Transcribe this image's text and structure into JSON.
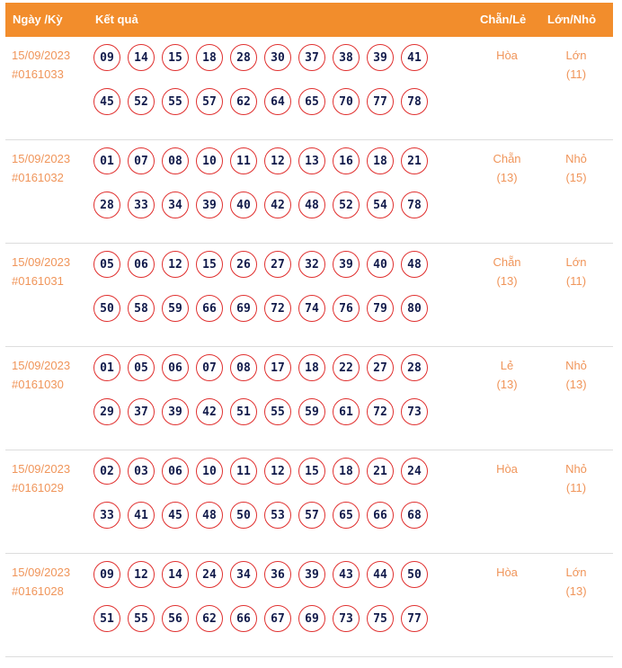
{
  "header": {
    "date": "Ngày /Kỳ",
    "result": "Kết quả",
    "even_odd": "Chẵn/Lẻ",
    "big_small": "Lớn/Nhỏ"
  },
  "colors": {
    "header_bg": "#f28d2c",
    "ball_border": "#e0302f",
    "text_accent": "#f0955a"
  },
  "rows": [
    {
      "date": "15/09/2023",
      "id": "#0161033",
      "numbers": [
        "09",
        "14",
        "15",
        "18",
        "28",
        "30",
        "37",
        "38",
        "39",
        "41",
        "45",
        "52",
        "55",
        "57",
        "62",
        "64",
        "65",
        "70",
        "77",
        "78"
      ],
      "even_odd": "Hòa",
      "even_odd_count": "",
      "big_small": "Lớn",
      "big_small_count": "(11)"
    },
    {
      "date": "15/09/2023",
      "id": "#0161032",
      "numbers": [
        "01",
        "07",
        "08",
        "10",
        "11",
        "12",
        "13",
        "16",
        "18",
        "21",
        "28",
        "33",
        "34",
        "39",
        "40",
        "42",
        "48",
        "52",
        "54",
        "78"
      ],
      "even_odd": "Chẵn",
      "even_odd_count": "(13)",
      "big_small": "Nhỏ",
      "big_small_count": "(15)"
    },
    {
      "date": "15/09/2023",
      "id": "#0161031",
      "numbers": [
        "05",
        "06",
        "12",
        "15",
        "26",
        "27",
        "32",
        "39",
        "40",
        "48",
        "50",
        "58",
        "59",
        "66",
        "69",
        "72",
        "74",
        "76",
        "79",
        "80"
      ],
      "even_odd": "Chẵn",
      "even_odd_count": "(13)",
      "big_small": "Lớn",
      "big_small_count": "(11)"
    },
    {
      "date": "15/09/2023",
      "id": "#0161030",
      "numbers": [
        "01",
        "05",
        "06",
        "07",
        "08",
        "17",
        "18",
        "22",
        "27",
        "28",
        "29",
        "37",
        "39",
        "42",
        "51",
        "55",
        "59",
        "61",
        "72",
        "73"
      ],
      "even_odd": "Lẻ",
      "even_odd_count": "(13)",
      "big_small": "Nhỏ",
      "big_small_count": "(13)"
    },
    {
      "date": "15/09/2023",
      "id": "#0161029",
      "numbers": [
        "02",
        "03",
        "06",
        "10",
        "11",
        "12",
        "15",
        "18",
        "21",
        "24",
        "33",
        "41",
        "45",
        "48",
        "50",
        "53",
        "57",
        "65",
        "66",
        "68"
      ],
      "even_odd": "Hòa",
      "even_odd_count": "",
      "big_small": "Nhỏ",
      "big_small_count": "(11)"
    },
    {
      "date": "15/09/2023",
      "id": "#0161028",
      "numbers": [
        "09",
        "12",
        "14",
        "24",
        "34",
        "36",
        "39",
        "43",
        "44",
        "50",
        "51",
        "55",
        "56",
        "62",
        "66",
        "67",
        "69",
        "73",
        "75",
        "77"
      ],
      "even_odd": "Hòa",
      "even_odd_count": "",
      "big_small": "Lớn",
      "big_small_count": "(13)"
    }
  ]
}
